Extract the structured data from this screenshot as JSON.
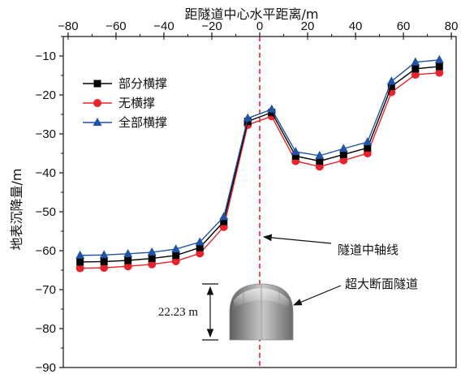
{
  "chart_data": {
    "type": "line",
    "title": "",
    "xlabel": "距隧道中心水平距离/m",
    "ylabel": "地表沉降量/m",
    "xlim": [
      -82,
      82
    ],
    "ylim": [
      -90,
      -5
    ],
    "x_ticks": [
      -80,
      -60,
      -40,
      -20,
      0,
      20,
      40,
      60,
      80
    ],
    "y_ticks": [
      -10,
      -20,
      -30,
      -40,
      -50,
      -60,
      -70,
      -80,
      -90
    ],
    "x_tick_labels": [
      "−80",
      "−60",
      "−40",
      "−20",
      "0",
      "20",
      "40",
      "60",
      "80"
    ],
    "y_tick_labels": [
      "−10",
      "−20",
      "−30",
      "−40",
      "−50",
      "−60",
      "−70",
      "−80",
      "−90"
    ],
    "x_axis_position": "top",
    "grid": false,
    "legend_position": "top-left",
    "x": [
      -75,
      -65,
      -55,
      -45,
      -35,
      -25,
      -15,
      -5,
      5,
      15,
      25,
      35,
      45,
      55,
      65,
      75
    ],
    "series": [
      {
        "name": "部分横撑",
        "color": "#000000",
        "marker": "square",
        "values": [
          -62.9,
          -62.8,
          -62.5,
          -62.0,
          -61.2,
          -59.2,
          -52.5,
          -26.8,
          -24.5,
          -35.7,
          -37.0,
          -35.3,
          -33.6,
          -17.8,
          -13.3,
          -12.7
        ]
      },
      {
        "name": "无横撑",
        "color": "#e8232a",
        "marker": "circle",
        "values": [
          -64.5,
          -64.4,
          -64.0,
          -63.5,
          -62.7,
          -60.7,
          -53.9,
          -27.7,
          -25.5,
          -37.0,
          -38.4,
          -36.8,
          -35.0,
          -19.3,
          -14.8,
          -14.3
        ]
      },
      {
        "name": "全部横撑",
        "color": "#2052a5",
        "marker": "triangle",
        "values": [
          -61.2,
          -61.1,
          -60.8,
          -60.4,
          -59.6,
          -57.8,
          -51.3,
          -26.0,
          -23.7,
          -34.6,
          -35.6,
          -33.8,
          -32.1,
          -16.5,
          -11.6,
          -11.0
        ]
      }
    ],
    "annotations": {
      "center_line": {
        "x": 0,
        "color": "#e8232a",
        "label": "隧道中轴线"
      },
      "tunnel": {
        "label": "超大断面隧道",
        "height_label": "22.23 m"
      }
    }
  }
}
